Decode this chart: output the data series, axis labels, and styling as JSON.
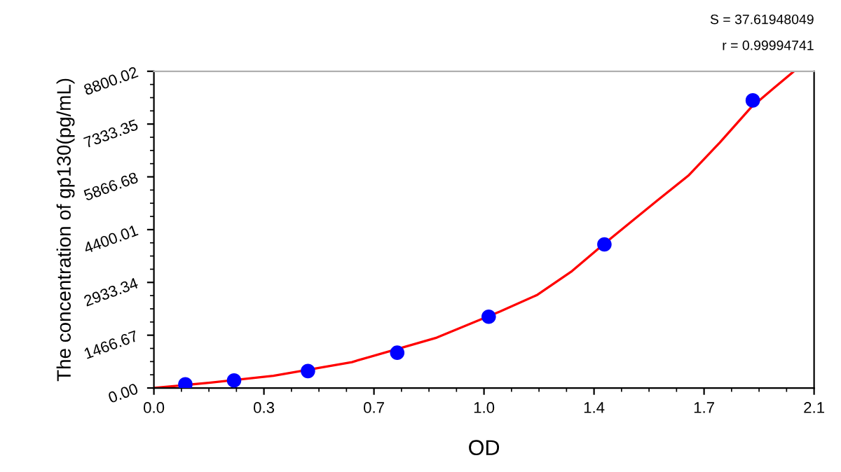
{
  "chart_data": {
    "type": "line",
    "xlabel": "OD",
    "ylabel": "The concentration of gp130(pg/mL)",
    "annotations": [
      "S = 37.61948049",
      "r = 0.99994741"
    ],
    "series": [
      {
        "color": "#ff0000",
        "marker": "none",
        "line_style": "solid",
        "x": [
          0,
          0.18,
          0.38,
          0.63,
          0.9,
          1.1,
          1.22,
          1.33,
          1.43,
          1.52,
          1.6,
          1.7,
          1.8,
          1.9,
          1.97,
          2.036
        ],
        "values": [
          0,
          150,
          340,
          720,
          1400,
          2120,
          2590,
          3250,
          3990,
          4630,
          5200,
          5900,
          6820,
          7800,
          8320,
          8800
        ]
      },
      {
        "type": "scatter",
        "color": "#0000ff",
        "marker": "circle",
        "x": [
          0.1,
          0.255,
          0.49,
          0.774,
          1.065,
          1.433,
          1.905
        ],
        "values": [
          100,
          210,
          470,
          980,
          1980,
          3990,
          7990
        ]
      }
    ],
    "xlim": [
      0,
      2.1
    ],
    "ylim": [
      0,
      8800.02
    ],
    "xticks": [
      {
        "value": 0,
        "label": "0.0"
      },
      {
        "value": 0.35,
        "label": "0.3"
      },
      0.7,
      {
        "value": 1.05,
        "label": "1.0"
      },
      1.4,
      {
        "value": 1.75,
        "label": "1.7"
      },
      2.1
    ],
    "yticks": [
      {
        "value": 0,
        "label": "0.00"
      },
      1466.67,
      2933.34,
      4400.01,
      5866.68,
      7333.35,
      8800.02
    ],
    "grid": false,
    "legend": false
  }
}
